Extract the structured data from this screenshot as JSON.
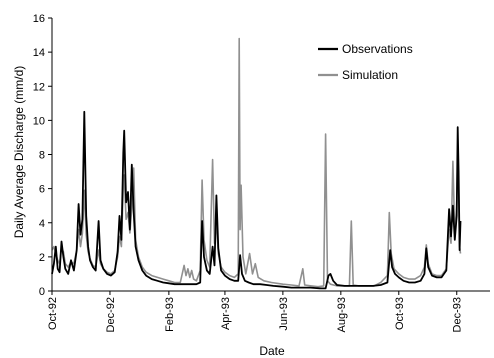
{
  "chart_data": {
    "type": "line",
    "title": "",
    "xlabel": "Date",
    "ylabel": "Daily Average Discharge (mm/d)",
    "ylim": [
      0,
      16
    ],
    "yticks": [
      0,
      2,
      4,
      6,
      8,
      10,
      12,
      14,
      16
    ],
    "xlim": [
      "1992-10-01",
      "1994-01-05"
    ],
    "xticks": [
      {
        "date": "1992-10-01",
        "label": "Oct-92"
      },
      {
        "date": "1992-12-01",
        "label": "Dec-92"
      },
      {
        "date": "1993-02-01",
        "label": "Feb-93"
      },
      {
        "date": "1993-04-01",
        "label": "Apr-93"
      },
      {
        "date": "1993-06-01",
        "label": "Jun-93"
      },
      {
        "date": "1993-08-01",
        "label": "Aug-93"
      },
      {
        "date": "1993-10-01",
        "label": "Oct-93"
      },
      {
        "date": "1993-12-01",
        "label": "Dec-93"
      }
    ],
    "grid": false,
    "legend": {
      "placement": "top-right"
    },
    "series": [
      {
        "name": "Observations",
        "color": "#000000",
        "points": [
          [
            "1992-10-01",
            1.0
          ],
          [
            "1992-10-03",
            1.6
          ],
          [
            "1992-10-05",
            2.6
          ],
          [
            "1992-10-07",
            1.3
          ],
          [
            "1992-10-09",
            1.1
          ],
          [
            "1992-10-11",
            2.9
          ],
          [
            "1992-10-13",
            2.0
          ],
          [
            "1992-10-15",
            1.3
          ],
          [
            "1992-10-18",
            1.0
          ],
          [
            "1992-10-21",
            1.8
          ],
          [
            "1992-10-24",
            1.2
          ],
          [
            "1992-10-27",
            2.4
          ],
          [
            "1992-10-29",
            5.1
          ],
          [
            "1992-10-31",
            3.3
          ],
          [
            "1992-11-02",
            4.2
          ],
          [
            "1992-11-04",
            10.5
          ],
          [
            "1992-11-06",
            4.4
          ],
          [
            "1992-11-08",
            2.6
          ],
          [
            "1992-11-10",
            1.8
          ],
          [
            "1992-11-13",
            1.4
          ],
          [
            "1992-11-16",
            1.2
          ],
          [
            "1992-11-19",
            4.1
          ],
          [
            "1992-11-21",
            1.8
          ],
          [
            "1992-11-24",
            1.3
          ],
          [
            "1992-11-28",
            1.0
          ],
          [
            "1992-12-02",
            0.9
          ],
          [
            "1992-12-06",
            1.1
          ],
          [
            "1992-12-09",
            2.3
          ],
          [
            "1992-12-11",
            4.4
          ],
          [
            "1992-12-13",
            3.0
          ],
          [
            "1992-12-15",
            8.1
          ],
          [
            "1992-12-16",
            9.4
          ],
          [
            "1992-12-18",
            5.2
          ],
          [
            "1992-12-20",
            5.8
          ],
          [
            "1992-12-22",
            3.6
          ],
          [
            "1992-12-24",
            7.4
          ],
          [
            "1992-12-26",
            4.6
          ],
          [
            "1992-12-28",
            2.6
          ],
          [
            "1992-12-31",
            1.8
          ],
          [
            "1993-01-04",
            1.2
          ],
          [
            "1993-01-08",
            0.9
          ],
          [
            "1993-01-14",
            0.7
          ],
          [
            "1993-01-20",
            0.6
          ],
          [
            "1993-01-26",
            0.5
          ],
          [
            "1993-02-01",
            0.45
          ],
          [
            "1993-02-07",
            0.4
          ],
          [
            "1993-02-13",
            0.4
          ],
          [
            "1993-02-19",
            0.4
          ],
          [
            "1993-02-25",
            0.4
          ],
          [
            "1993-03-02",
            0.4
          ],
          [
            "1993-03-06",
            0.5
          ],
          [
            "1993-03-08",
            4.1
          ],
          [
            "1993-03-10",
            2.0
          ],
          [
            "1993-03-13",
            1.2
          ],
          [
            "1993-03-16",
            1.0
          ],
          [
            "1993-03-19",
            2.6
          ],
          [
            "1993-03-21",
            1.5
          ],
          [
            "1993-03-23",
            5.6
          ],
          [
            "1993-03-25",
            2.5
          ],
          [
            "1993-03-28",
            1.2
          ],
          [
            "1993-04-01",
            0.9
          ],
          [
            "1993-04-06",
            0.7
          ],
          [
            "1993-04-11",
            0.6
          ],
          [
            "1993-04-15",
            0.6
          ],
          [
            "1993-04-17",
            2.1
          ],
          [
            "1993-04-19",
            1.0
          ],
          [
            "1993-04-22",
            0.6
          ],
          [
            "1993-04-26",
            0.5
          ],
          [
            "1993-05-01",
            0.4
          ],
          [
            "1993-05-08",
            0.4
          ],
          [
            "1993-05-15",
            0.35
          ],
          [
            "1993-05-22",
            0.3
          ],
          [
            "1993-06-01",
            0.25
          ],
          [
            "1993-06-10",
            0.2
          ],
          [
            "1993-06-20",
            0.2
          ],
          [
            "1993-06-30",
            0.2
          ],
          [
            "1993-07-10",
            0.15
          ],
          [
            "1993-07-16",
            0.15
          ],
          [
            "1993-07-19",
            0.9
          ],
          [
            "1993-07-21",
            1.0
          ],
          [
            "1993-07-24",
            0.6
          ],
          [
            "1993-07-28",
            0.35
          ],
          [
            "1993-08-05",
            0.3
          ],
          [
            "1993-08-15",
            0.3
          ],
          [
            "1993-08-25",
            0.3
          ],
          [
            "1993-09-04",
            0.3
          ],
          [
            "1993-09-12",
            0.35
          ],
          [
            "1993-09-19",
            0.5
          ],
          [
            "1993-09-22",
            2.4
          ],
          [
            "1993-09-24",
            1.4
          ],
          [
            "1993-09-27",
            1.0
          ],
          [
            "1993-10-01",
            0.8
          ],
          [
            "1993-10-06",
            0.6
          ],
          [
            "1993-10-12",
            0.5
          ],
          [
            "1993-10-18",
            0.5
          ],
          [
            "1993-10-24",
            0.6
          ],
          [
            "1993-10-28",
            1.0
          ],
          [
            "1993-10-30",
            2.5
          ],
          [
            "1993-11-01",
            1.4
          ],
          [
            "1993-11-05",
            0.9
          ],
          [
            "1993-11-10",
            0.8
          ],
          [
            "1993-11-15",
            0.8
          ],
          [
            "1993-11-20",
            1.2
          ],
          [
            "1993-11-23",
            4.8
          ],
          [
            "1993-11-25",
            3.2
          ],
          [
            "1993-11-27",
            5.0
          ],
          [
            "1993-11-29",
            3.0
          ],
          [
            "1993-12-01",
            4.4
          ],
          [
            "1993-12-02",
            9.6
          ],
          [
            "1993-12-03",
            7.0
          ],
          [
            "1993-12-04",
            2.4
          ],
          [
            "1993-12-05",
            4.1
          ]
        ]
      },
      {
        "name": "Simulation",
        "color": "#909090",
        "points": [
          [
            "1992-10-01",
            2.4
          ],
          [
            "1992-10-03",
            2.6
          ],
          [
            "1992-10-05",
            2.2
          ],
          [
            "1992-10-07",
            1.8
          ],
          [
            "1992-10-09",
            1.6
          ],
          [
            "1992-10-11",
            2.5
          ],
          [
            "1992-10-13",
            2.3
          ],
          [
            "1992-10-15",
            1.6
          ],
          [
            "1992-10-18",
            1.4
          ],
          [
            "1992-10-21",
            1.7
          ],
          [
            "1992-10-24",
            1.6
          ],
          [
            "1992-10-27",
            2.4
          ],
          [
            "1992-10-29",
            3.6
          ],
          [
            "1992-10-31",
            2.6
          ],
          [
            "1992-11-02",
            3.4
          ],
          [
            "1992-11-04",
            5.9
          ],
          [
            "1992-11-06",
            3.3
          ],
          [
            "1992-11-08",
            2.3
          ],
          [
            "1992-11-10",
            1.9
          ],
          [
            "1992-11-13",
            1.5
          ],
          [
            "1992-11-16",
            1.4
          ],
          [
            "1992-11-19",
            2.4
          ],
          [
            "1992-11-21",
            1.6
          ],
          [
            "1992-11-24",
            1.3
          ],
          [
            "1992-11-28",
            1.1
          ],
          [
            "1992-12-02",
            1.0
          ],
          [
            "1992-12-06",
            1.2
          ],
          [
            "1992-12-09",
            2.0
          ],
          [
            "1992-12-11",
            3.2
          ],
          [
            "1992-12-13",
            2.6
          ],
          [
            "1992-12-15",
            6.2
          ],
          [
            "1992-12-16",
            6.8
          ],
          [
            "1992-12-18",
            4.2
          ],
          [
            "1992-12-20",
            4.6
          ],
          [
            "1992-12-22",
            3.4
          ],
          [
            "1992-12-24",
            4.9
          ],
          [
            "1992-12-26",
            7.2
          ],
          [
            "1992-12-28",
            3.0
          ],
          [
            "1992-12-31",
            2.0
          ],
          [
            "1993-01-04",
            1.4
          ],
          [
            "1993-01-08",
            1.1
          ],
          [
            "1993-01-14",
            0.9
          ],
          [
            "1993-01-20",
            0.8
          ],
          [
            "1993-01-26",
            0.7
          ],
          [
            "1993-02-01",
            0.6
          ],
          [
            "1993-02-07",
            0.5
          ],
          [
            "1993-02-13",
            0.5
          ],
          [
            "1993-02-17",
            1.5
          ],
          [
            "1993-02-19",
            0.9
          ],
          [
            "1993-02-21",
            1.3
          ],
          [
            "1993-02-23",
            0.8
          ],
          [
            "1993-02-25",
            1.2
          ],
          [
            "1993-02-27",
            0.7
          ],
          [
            "1993-03-02",
            0.6
          ],
          [
            "1993-03-06",
            1.2
          ],
          [
            "1993-03-08",
            6.5
          ],
          [
            "1993-03-10",
            3.0
          ],
          [
            "1993-03-13",
            1.8
          ],
          [
            "1993-03-16",
            1.4
          ],
          [
            "1993-03-19",
            7.7
          ],
          [
            "1993-03-21",
            2.8
          ],
          [
            "1993-03-23",
            4.0
          ],
          [
            "1993-03-25",
            2.2
          ],
          [
            "1993-03-28",
            1.4
          ],
          [
            "1993-04-01",
            1.1
          ],
          [
            "1993-04-06",
            0.9
          ],
          [
            "1993-04-11",
            0.8
          ],
          [
            "1993-04-15",
            1.0
          ],
          [
            "1993-04-16",
            14.8
          ],
          [
            "1993-04-17",
            3.6
          ],
          [
            "1993-04-18",
            6.2
          ],
          [
            "1993-04-20",
            2.0
          ],
          [
            "1993-04-23",
            1.0
          ],
          [
            "1993-04-27",
            2.2
          ],
          [
            "1993-04-30",
            1.0
          ],
          [
            "1993-05-03",
            1.6
          ],
          [
            "1993-05-06",
            0.8
          ],
          [
            "1993-05-12",
            0.6
          ],
          [
            "1993-05-20",
            0.5
          ],
          [
            "1993-06-01",
            0.4
          ],
          [
            "1993-06-10",
            0.35
          ],
          [
            "1993-06-18",
            0.3
          ],
          [
            "1993-06-22",
            1.3
          ],
          [
            "1993-06-24",
            0.35
          ],
          [
            "1993-07-01",
            0.3
          ],
          [
            "1993-07-08",
            0.25
          ],
          [
            "1993-07-14",
            0.3
          ],
          [
            "1993-07-16",
            9.2
          ],
          [
            "1993-07-18",
            0.6
          ],
          [
            "1993-07-21",
            0.4
          ],
          [
            "1993-07-28",
            0.3
          ],
          [
            "1993-08-05",
            0.3
          ],
          [
            "1993-08-10",
            0.3
          ],
          [
            "1993-08-12",
            4.1
          ],
          [
            "1993-08-14",
            0.35
          ],
          [
            "1993-08-20",
            0.3
          ],
          [
            "1993-08-28",
            0.3
          ],
          [
            "1993-09-05",
            0.3
          ],
          [
            "1993-09-12",
            0.5
          ],
          [
            "1993-09-19",
            0.9
          ],
          [
            "1993-09-21",
            4.6
          ],
          [
            "1993-09-23",
            2.2
          ],
          [
            "1993-09-26",
            1.3
          ],
          [
            "1993-10-01",
            1.0
          ],
          [
            "1993-10-06",
            0.8
          ],
          [
            "1993-10-12",
            0.7
          ],
          [
            "1993-10-18",
            0.7
          ],
          [
            "1993-10-24",
            0.9
          ],
          [
            "1993-10-28",
            1.4
          ],
          [
            "1993-10-30",
            2.7
          ],
          [
            "1993-11-01",
            1.6
          ],
          [
            "1993-11-05",
            1.0
          ],
          [
            "1993-11-10",
            0.9
          ],
          [
            "1993-11-15",
            0.9
          ],
          [
            "1993-11-20",
            1.3
          ],
          [
            "1993-11-23",
            3.6
          ],
          [
            "1993-11-25",
            2.8
          ],
          [
            "1993-11-27",
            7.6
          ],
          [
            "1993-11-29",
            3.2
          ],
          [
            "1993-12-01",
            5.0
          ],
          [
            "1993-12-02",
            8.3
          ],
          [
            "1993-12-03",
            6.2
          ],
          [
            "1993-12-04",
            2.6
          ],
          [
            "1993-12-05",
            2.2
          ]
        ]
      }
    ]
  }
}
